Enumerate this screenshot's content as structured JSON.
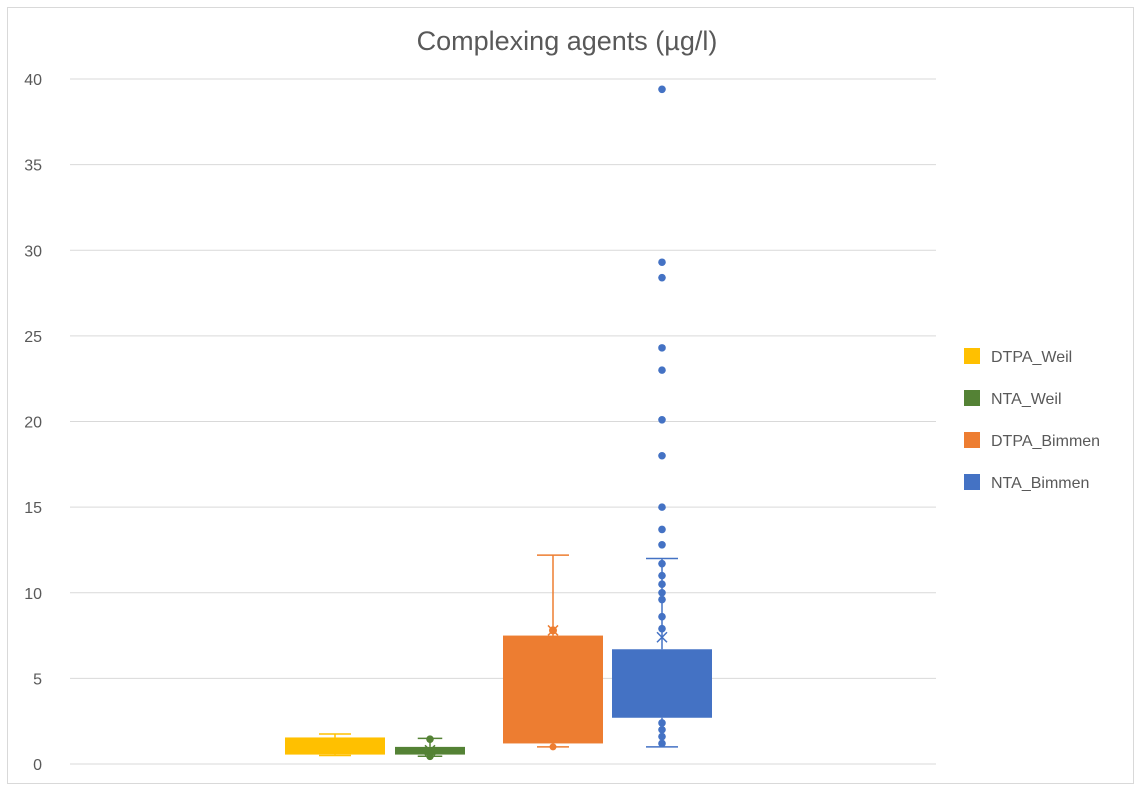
{
  "chart_data": {
    "type": "box",
    "title": "Complexing agents (µg/l)",
    "xlabel": "",
    "ylabel": "",
    "ylim": [
      0,
      40
    ],
    "yticks": [
      0,
      5,
      10,
      15,
      20,
      25,
      30,
      35,
      40
    ],
    "grid": "horizontal",
    "legend_position": "right",
    "series": [
      {
        "name": "DTPA_Weil",
        "color": "#FFC000",
        "min": 0.5,
        "q1": 0.55,
        "median": 1.1,
        "q3": 1.55,
        "max": 1.75,
        "mean": 1.1,
        "outliers": []
      },
      {
        "name": "NTA_Weil",
        "color": "#548235",
        "min": 0.45,
        "q1": 0.55,
        "median": 0.75,
        "q3": 1.0,
        "max": 1.5,
        "mean": 0.8,
        "outliers": [
          1.45,
          0.45
        ]
      },
      {
        "name": "DTPA_Bimmen",
        "color": "#ED7D31",
        "min": 1.0,
        "q1": 1.2,
        "median": 3.5,
        "q3": 7.5,
        "max": 12.2,
        "mean": 7.8,
        "outliers": []
      },
      {
        "name": "NTA_Bimmen",
        "color": "#4472C4",
        "min": 1.0,
        "q1": 2.7,
        "median": 4.5,
        "q3": 6.7,
        "max": 12.0,
        "mean": 7.4,
        "outliers": [
          39.4,
          29.3,
          28.4,
          24.3,
          23.0,
          20.1,
          18.0,
          15.0,
          13.7,
          12.8,
          11.7,
          11.0,
          10.5,
          10.0,
          9.6,
          8.6,
          7.9,
          2.4,
          2.0,
          1.6,
          1.2
        ]
      }
    ]
  }
}
